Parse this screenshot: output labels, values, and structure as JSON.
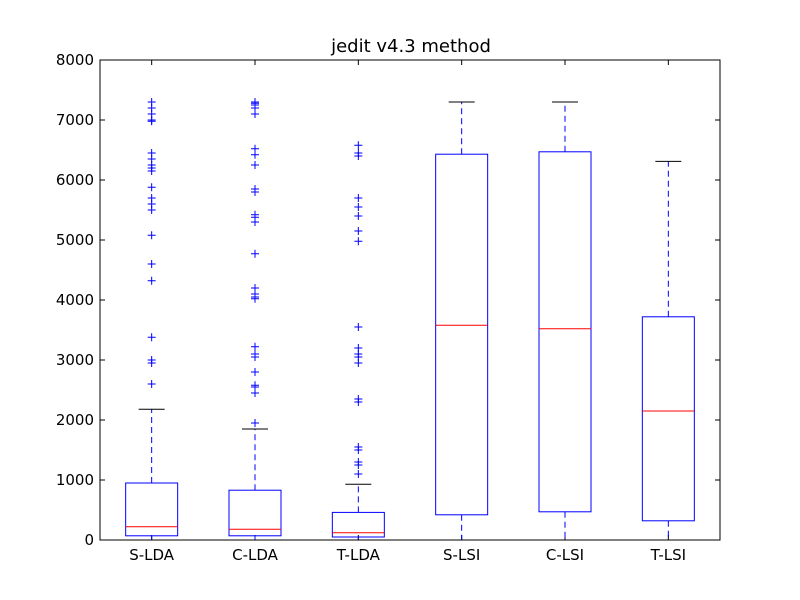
{
  "chart_data": {
    "type": "boxplot",
    "title": "jedit v4.3 method",
    "xlabel": "",
    "ylabel": "",
    "ylim": [
      0,
      8000
    ],
    "yticks": [
      0,
      1000,
      2000,
      3000,
      4000,
      5000,
      6000,
      7000,
      8000
    ],
    "grid": false,
    "colors": {
      "box": "#0000ff",
      "median": "#ff0000",
      "cap": "#000000",
      "flier": "#0000ff"
    },
    "categories": [
      "S-LDA",
      "C-LDA",
      "T-LDA",
      "S-LSI",
      "C-LSI",
      "T-LSI"
    ],
    "boxes": [
      {
        "label": "S-LDA",
        "whisker_low": 0,
        "q1": 70,
        "median": 220,
        "q3": 950,
        "whisker_high": 2180,
        "fliers": [
          2600,
          2950,
          3000,
          3380,
          4320,
          4600,
          5080,
          5500,
          5600,
          5700,
          5880,
          6150,
          6200,
          6250,
          6350,
          6450,
          6980,
          7000,
          7100,
          7200,
          7300
        ]
      },
      {
        "label": "C-LDA",
        "whisker_low": 0,
        "q1": 70,
        "median": 180,
        "q3": 830,
        "whisker_high": 1850,
        "fliers": [
          1950,
          2450,
          2550,
          2580,
          2800,
          3050,
          3100,
          3220,
          4020,
          4050,
          4100,
          4200,
          4770,
          5300,
          5380,
          5420,
          5800,
          5850,
          6250,
          6420,
          6520,
          7100,
          7200,
          7250,
          7280,
          7300
        ]
      },
      {
        "label": "T-LDA",
        "whisker_low": 0,
        "q1": 50,
        "median": 120,
        "q3": 460,
        "whisker_high": 930,
        "fliers": [
          1100,
          1250,
          1300,
          1500,
          1550,
          2300,
          2350,
          2950,
          3050,
          3100,
          3200,
          3550,
          4980,
          5150,
          5400,
          5550,
          5700,
          6400,
          6450,
          6580
        ]
      },
      {
        "label": "S-LSI",
        "whisker_low": 0,
        "q1": 420,
        "median": 3580,
        "q3": 6430,
        "whisker_high": 7300,
        "fliers": []
      },
      {
        "label": "C-LSI",
        "whisker_low": 0,
        "q1": 470,
        "median": 3520,
        "q3": 6470,
        "whisker_high": 7300,
        "fliers": []
      },
      {
        "label": "T-LSI",
        "whisker_low": 0,
        "q1": 320,
        "median": 2150,
        "q3": 3720,
        "whisker_high": 6310,
        "fliers": []
      }
    ]
  }
}
